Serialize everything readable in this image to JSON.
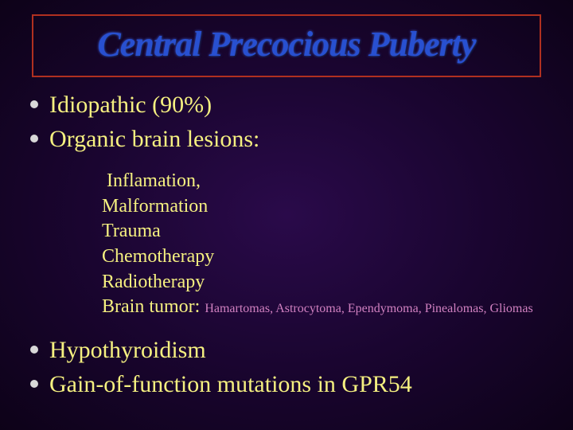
{
  "title": "Central Precocious Puberty",
  "colors": {
    "title_border": "#b03020",
    "title_text": "#2850d0",
    "body_text": "#f5f080",
    "detail_text": "#d080c0",
    "bullet": "#d8d8d8",
    "bg_center": "#2a0a4a",
    "bg_edge": "#0d0218"
  },
  "bullets_top": [
    "Idiopathic (90%)",
    "Organic brain lesions:"
  ],
  "sublist": {
    "first": "Inflamation,",
    "rest": [
      "Malformation",
      "Trauma",
      "Chemotherapy",
      "Radiotherapy"
    ],
    "tumor_label": "Brain tumor:",
    "tumor_detail": "Hamartomas,  Astrocytoma, Ependymoma, Pinealomas,  Gliomas"
  },
  "bullets_bottom": [
    "Hypothyroidism",
    "Gain-of-function mutations in GPR54"
  ]
}
